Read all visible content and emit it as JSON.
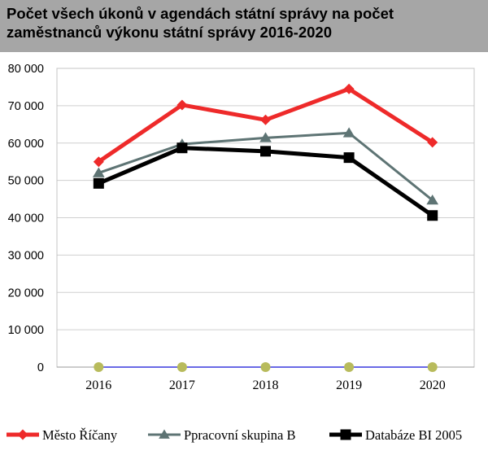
{
  "header": {
    "title_line1": "Počet všech úkonů v agendách státní správy na počet",
    "title_line2": "zaměstnanců výkonu státní správy 2016-2020"
  },
  "chart_data": {
    "type": "line",
    "title": "Počet všech úkonů v agendách státní správy na počet zaměstnanců výkonu státní správy 2016-2020",
    "xlabel": "",
    "ylabel": "",
    "x": [
      "2016",
      "2017",
      "2018",
      "2019",
      "2020"
    ],
    "ylim": [
      0,
      80000
    ],
    "yticks": [
      0,
      10000,
      20000,
      30000,
      40000,
      50000,
      60000,
      70000,
      80000
    ],
    "ytick_labels": [
      "0",
      "10 000",
      "20 000",
      "30 000",
      "40 000",
      "50 000",
      "60 000",
      "70 000",
      "80 000"
    ],
    "grid": true,
    "legend_position": "bottom",
    "series": [
      {
        "name": "Město Říčany",
        "values": [
          55000,
          70200,
          66200,
          74500,
          60200
        ],
        "color": "#ee2a2a",
        "marker": "diamond"
      },
      {
        "name": "Ppracovní skupina B",
        "values": [
          52000,
          59700,
          61400,
          62700,
          44700
        ],
        "color": "#5e7474",
        "marker": "triangle"
      },
      {
        "name": "Databáze BI 2005",
        "values": [
          49200,
          58700,
          57800,
          56100,
          40600
        ],
        "color": "#000000",
        "marker": "square"
      },
      {
        "name": "",
        "values": [
          0,
          0,
          0,
          0,
          0
        ],
        "color": "#6a6ae6",
        "marker": "circle",
        "marker_color": "#b8bb5c"
      }
    ]
  }
}
